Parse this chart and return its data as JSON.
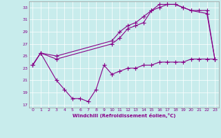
{
  "background_color": "#c8ecec",
  "line_color": "#880088",
  "xlabel": "Windchill (Refroidissement éolien,°C)",
  "xlim": [
    -0.5,
    23.5
  ],
  "ylim": [
    16.5,
    34.0
  ],
  "yticks": [
    17,
    19,
    21,
    23,
    25,
    27,
    29,
    31,
    33
  ],
  "xticks": [
    0,
    1,
    2,
    3,
    4,
    5,
    6,
    7,
    8,
    9,
    10,
    11,
    12,
    13,
    14,
    15,
    16,
    17,
    18,
    19,
    20,
    21,
    22,
    23
  ],
  "series1_x": [
    0,
    1,
    3,
    10,
    11,
    12,
    13,
    14,
    15,
    16,
    17,
    18,
    19,
    20,
    22,
    23
  ],
  "series1_y": [
    23.5,
    25.5,
    24.5,
    27.0,
    28.0,
    29.5,
    30.0,
    30.5,
    32.5,
    33.0,
    33.5,
    33.5,
    33.0,
    32.5,
    32.0,
    24.5
  ],
  "series2_x": [
    0,
    1,
    3,
    10,
    11,
    12,
    13,
    14,
    15,
    16,
    17,
    18,
    19,
    20,
    21,
    22,
    23
  ],
  "series2_y": [
    23.5,
    25.5,
    25.0,
    27.5,
    29.0,
    30.0,
    30.5,
    31.5,
    32.5,
    33.5,
    33.5,
    33.5,
    33.0,
    32.5,
    32.5,
    32.5,
    24.5
  ],
  "series3_x": [
    0,
    1,
    3,
    4,
    5,
    6,
    7,
    8,
    9,
    10,
    11,
    12,
    13,
    14,
    15,
    16,
    17,
    18,
    19,
    20,
    21,
    22,
    23
  ],
  "series3_y": [
    23.5,
    25.5,
    21.0,
    19.5,
    18.0,
    18.0,
    17.5,
    19.5,
    23.5,
    22.0,
    22.5,
    23.0,
    23.0,
    23.5,
    23.5,
    24.0,
    24.0,
    24.0,
    24.0,
    24.5,
    24.5,
    24.5,
    24.5
  ]
}
